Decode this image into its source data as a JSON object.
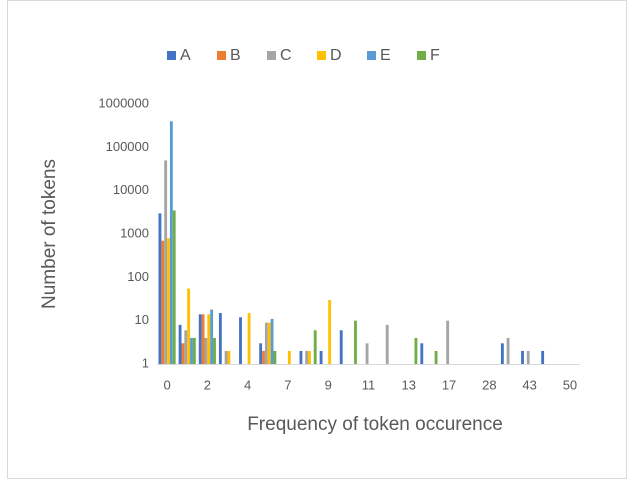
{
  "chart_data": {
    "type": "bar",
    "x_label": "Frequency of token occurence",
    "y_label": "Number of tokens",
    "categories": [
      0,
      null,
      2,
      null,
      4,
      null,
      7,
      null,
      9,
      null,
      11,
      null,
      13,
      null,
      17,
      null,
      28,
      null,
      43,
      null,
      50
    ],
    "series": [
      {
        "name": "A",
        "color": "#4472c4",
        "values": [
          3000,
          8,
          14,
          15,
          12,
          3,
          null,
          2,
          2,
          6,
          null,
          null,
          null,
          3,
          null,
          null,
          null,
          3,
          2,
          2,
          null
        ]
      },
      {
        "name": "B",
        "color": "#ed7d31",
        "values": [
          700,
          3,
          14,
          null,
          null,
          2,
          null,
          null,
          null,
          null,
          null,
          null,
          null,
          null,
          null,
          null,
          null,
          null,
          null,
          null,
          null
        ]
      },
      {
        "name": "C",
        "color": "#a5a5a5",
        "values": [
          50000,
          6,
          4,
          2,
          null,
          9,
          null,
          2,
          null,
          null,
          3,
          8,
          null,
          null,
          10,
          null,
          null,
          4,
          2,
          null,
          null
        ]
      },
      {
        "name": "D",
        "color": "#ffc000",
        "values": [
          800,
          55,
          14,
          2,
          15,
          9,
          2,
          2,
          30,
          null,
          null,
          null,
          null,
          null,
          null,
          null,
          null,
          null,
          null,
          null,
          null
        ]
      },
      {
        "name": "E",
        "color": "#5b9bd5",
        "values": [
          400000,
          4,
          18,
          null,
          null,
          11,
          null,
          null,
          null,
          null,
          null,
          null,
          null,
          null,
          null,
          null,
          null,
          null,
          null,
          null,
          null
        ]
      },
      {
        "name": "F",
        "color": "#70ad47",
        "values": [
          3500,
          4,
          4,
          null,
          null,
          2,
          null,
          6,
          null,
          10,
          null,
          null,
          4,
          2,
          null,
          null,
          null,
          null,
          null,
          null,
          null
        ]
      }
    ],
    "ylim": [
      1,
      1000000
    ],
    "yticks": [
      1,
      10,
      100,
      1000,
      10000,
      100000,
      1000000
    ],
    "log_y": true,
    "grid": false,
    "legend": "top"
  }
}
